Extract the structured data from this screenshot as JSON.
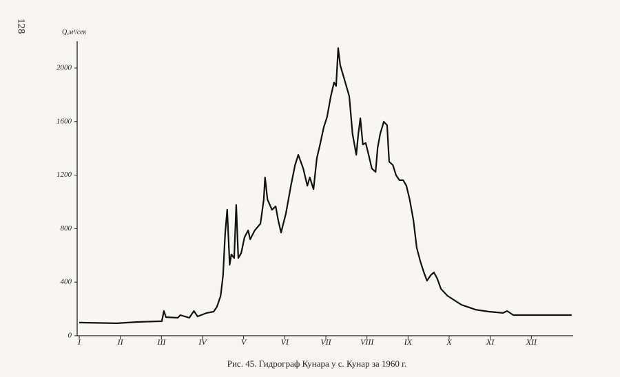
{
  "page_number": "128",
  "chart_data": {
    "type": "line",
    "y_label": "Q,м³/сек",
    "caption": "Рис. 45. Гидрограф Кунара у с. Кунар за 1960 г.",
    "color": "#111111",
    "xlim": [
      1,
      13
    ],
    "ylim": [
      0,
      2200
    ],
    "yticks": [
      0,
      400,
      800,
      1200,
      1600,
      2000
    ],
    "xticks": [
      {
        "value": 1,
        "label": "I"
      },
      {
        "value": 2,
        "label": "II"
      },
      {
        "value": 3,
        "label": "III"
      },
      {
        "value": 4,
        "label": "IV"
      },
      {
        "value": 5,
        "label": "V"
      },
      {
        "value": 6,
        "label": "VI"
      },
      {
        "value": 7,
        "label": "VII"
      },
      {
        "value": 8,
        "label": "VIII"
      },
      {
        "value": 9,
        "label": "IX"
      },
      {
        "value": 10,
        "label": "X"
      },
      {
        "value": 11,
        "label": "XI"
      },
      {
        "value": 12,
        "label": "XII"
      }
    ],
    "x": [
      1.0,
      1.92,
      2.42,
      2.93,
      3.01,
      3.06,
      3.11,
      3.4,
      3.46,
      3.68,
      3.79,
      3.88,
      4.1,
      4.27,
      4.35,
      4.44,
      4.5,
      4.55,
      4.6,
      4.66,
      4.7,
      4.77,
      4.82,
      4.87,
      4.94,
      5.02,
      5.11,
      5.16,
      5.27,
      5.41,
      5.49,
      5.52,
      5.58,
      5.69,
      5.78,
      5.84,
      5.91,
      6.03,
      6.15,
      6.25,
      6.33,
      6.45,
      6.55,
      6.61,
      6.7,
      6.78,
      6.86,
      6.95,
      7.03,
      7.12,
      7.2,
      7.25,
      7.3,
      7.35,
      7.45,
      7.57,
      7.65,
      7.74,
      7.79,
      7.84,
      7.9,
      7.97,
      8.04,
      8.12,
      8.21,
      8.26,
      8.32,
      8.41,
      8.49,
      8.54,
      8.63,
      8.71,
      8.79,
      8.88,
      8.96,
      9.04,
      9.13,
      9.21,
      9.3,
      9.38,
      9.46,
      9.55,
      9.63,
      9.71,
      9.8,
      9.96,
      10.3,
      10.64,
      10.97,
      11.31,
      11.41,
      11.56,
      12.14,
      12.98
    ],
    "values": [
      98,
      93,
      103,
      108,
      108,
      185,
      139,
      134,
      154,
      134,
      185,
      144,
      170,
      180,
      216,
      298,
      452,
      761,
      941,
      530,
      607,
      581,
      977,
      581,
      617,
      735,
      787,
      720,
      787,
      838,
      1018,
      1183,
      1018,
      941,
      967,
      864,
      771,
      915,
      1121,
      1275,
      1352,
      1249,
      1121,
      1183,
      1095,
      1326,
      1429,
      1558,
      1635,
      1789,
      1892,
      1866,
      2149,
      2021,
      1918,
      1789,
      1506,
      1352,
      1506,
      1625,
      1429,
      1440,
      1352,
      1249,
      1224,
      1404,
      1506,
      1599,
      1573,
      1301,
      1275,
      1198,
      1162,
      1162,
      1121,
      1018,
      864,
      658,
      555,
      478,
      411,
      452,
      473,
      427,
      350,
      298,
      231,
      195,
      180,
      170,
      185,
      154,
      154,
      154
    ]
  }
}
